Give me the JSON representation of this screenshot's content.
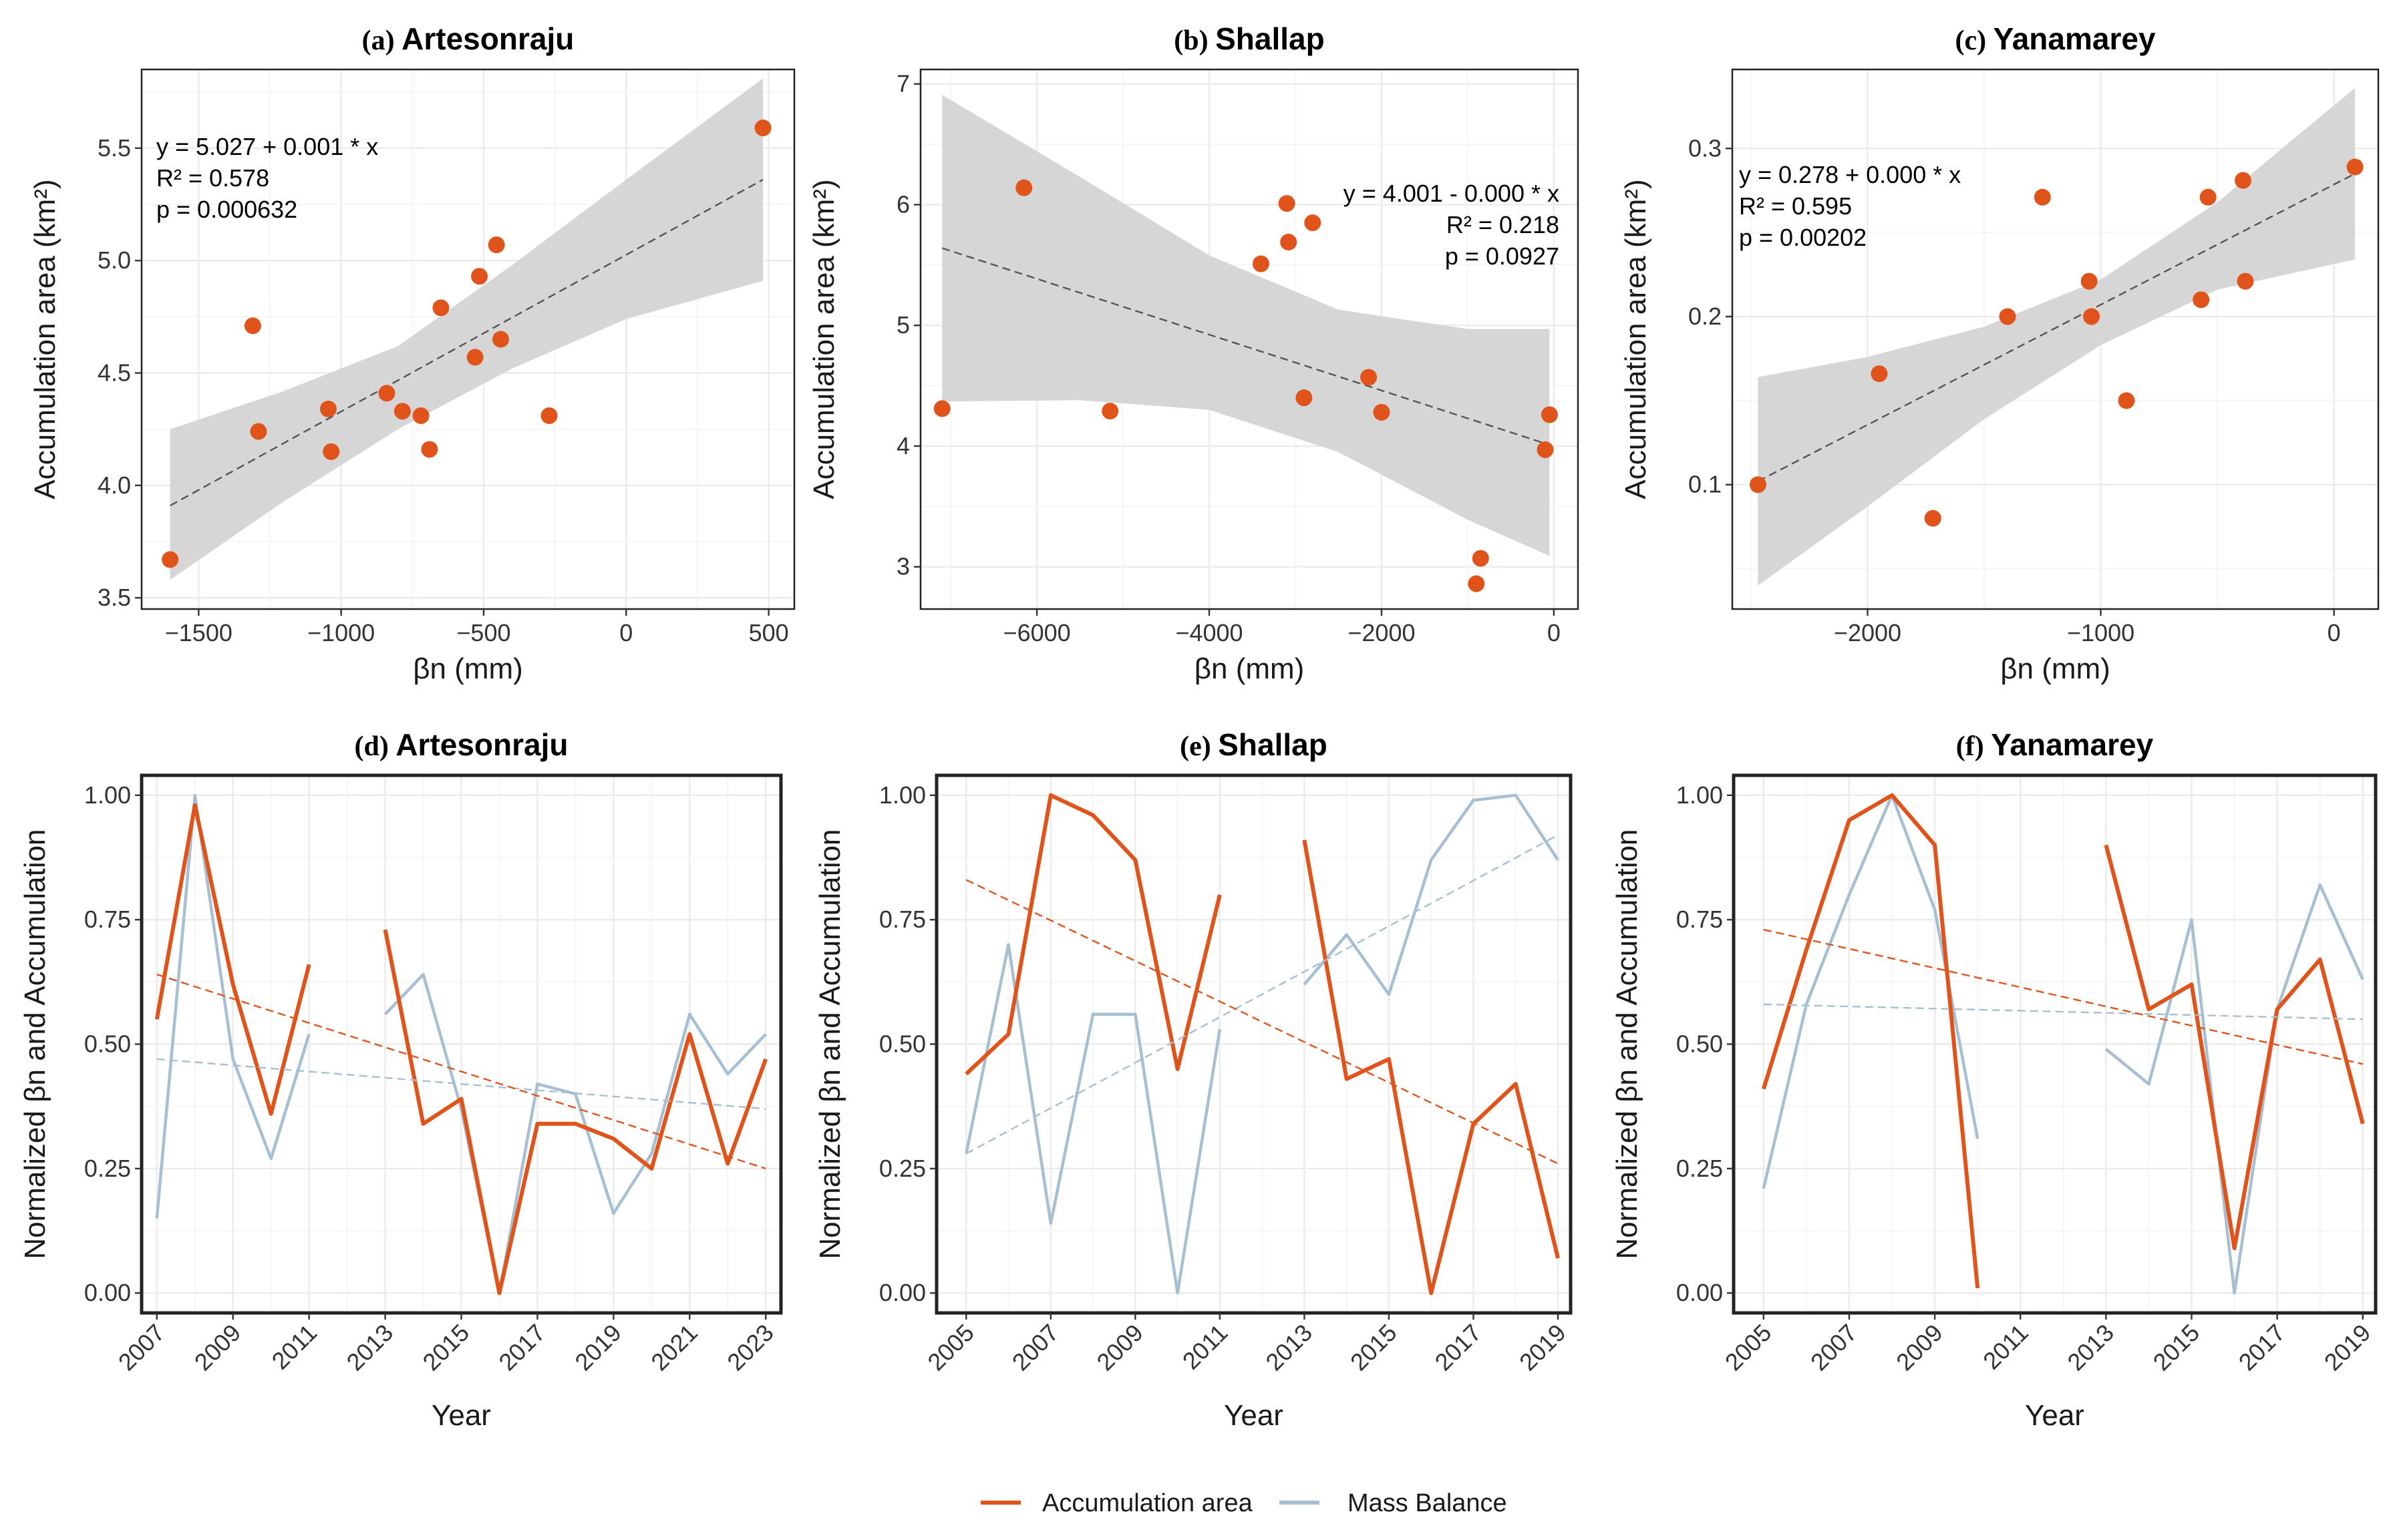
{
  "colors": {
    "accumulation": "#E0541B",
    "mass_balance": "#A7BFD3",
    "band": "#D6D6D6",
    "grid": "#EBEBEB"
  },
  "legend": {
    "accumulation_label": "Accumulation area",
    "mass_balance_label": "Mass Balance"
  },
  "chart_data": [
    {
      "type": "scatter",
      "title_prefix": "(a)",
      "title_name": "Artesonraju",
      "xlabel": "βn (mm)",
      "ylabel": "Accumulation area (km²)",
      "xlim": [
        -1700,
        590
      ],
      "ylim": [
        3.45,
        5.85
      ],
      "xticks": [
        -1500,
        -1000,
        -500,
        0,
        500
      ],
      "xtick_labels": [
        "−1500",
        "−1000",
        "−500",
        "0",
        "500"
      ],
      "yticks": [
        3.5,
        4.0,
        4.5,
        5.0,
        5.5
      ],
      "ytick_labels": [
        "3.5",
        "4.0",
        "4.5",
        "5.0",
        "5.5"
      ],
      "points": [
        [
          -1600,
          3.67
        ],
        [
          -1310,
          4.71
        ],
        [
          -1290,
          4.24
        ],
        [
          -1045,
          4.34
        ],
        [
          -1035,
          4.15
        ],
        [
          -840,
          4.41
        ],
        [
          -785,
          4.33
        ],
        [
          -720,
          4.31
        ],
        [
          -690,
          4.16
        ],
        [
          -650,
          4.79
        ],
        [
          -530,
          4.57
        ],
        [
          -515,
          4.93
        ],
        [
          -455,
          5.07
        ],
        [
          -440,
          4.65
        ],
        [
          -270,
          4.31
        ],
        [
          480,
          5.59
        ]
      ],
      "fit": {
        "x0": -1600,
        "x1": 480,
        "y0": 3.91,
        "y1": 5.36
      },
      "band": [
        [
          -1600,
          3.58,
          4.25
        ],
        [
          -1200,
          3.93,
          4.42
        ],
        [
          -800,
          4.25,
          4.62
        ],
        [
          -400,
          4.52,
          4.98
        ],
        [
          0,
          4.74,
          5.36
        ],
        [
          480,
          4.91,
          5.81
        ]
      ],
      "annotation": [
        "y = 5.027 + 0.001 * x",
        "R² = 0.578",
        "p = 0.000632"
      ],
      "annotation_align": "left"
    },
    {
      "type": "scatter",
      "title_prefix": "(b)",
      "title_name": "Shallap",
      "xlabel": "βn (mm)",
      "ylabel": "Accumulation area (km²)",
      "xlim": [
        -7350,
        280
      ],
      "ylim": [
        2.65,
        7.12
      ],
      "xticks": [
        -6000,
        -4000,
        -2000,
        0
      ],
      "xtick_labels": [
        "−6000",
        "−4000",
        "−2000",
        "0"
      ],
      "yticks": [
        3,
        4,
        5,
        6,
        7
      ],
      "ytick_labels": [
        "3",
        "4",
        "5",
        "6",
        "7"
      ],
      "points": [
        [
          -7100,
          4.31
        ],
        [
          -6150,
          6.14
        ],
        [
          -5150,
          4.29
        ],
        [
          -3400,
          5.51
        ],
        [
          -3100,
          6.01
        ],
        [
          -3080,
          5.69
        ],
        [
          -2800,
          5.85
        ],
        [
          -2900,
          4.4
        ],
        [
          -2150,
          4.57
        ],
        [
          -2000,
          4.28
        ],
        [
          -900,
          2.86
        ],
        [
          -850,
          3.07
        ],
        [
          -100,
          3.97
        ],
        [
          -50,
          4.26
        ]
      ],
      "fit": {
        "x0": -7100,
        "x1": -50,
        "y0": 5.64,
        "y1": 4.01
      },
      "band": [
        [
          -7100,
          4.37,
          6.91
        ],
        [
          -5500,
          4.38,
          6.23
        ],
        [
          -4000,
          4.3,
          5.58
        ],
        [
          -2500,
          3.95,
          5.13
        ],
        [
          -1000,
          3.39,
          4.97
        ],
        [
          -50,
          3.09,
          4.97
        ]
      ],
      "annotation": [
        "y = 4.001 - 0.000 * x",
        "R² = 0.218",
        "p = 0.0927"
      ],
      "annotation_align": "right"
    },
    {
      "type": "scatter",
      "title_prefix": "(c)",
      "title_name": "Yanamarey",
      "xlabel": "βn (mm)",
      "ylabel": "Accumulation area (km²)",
      "xlim": [
        -2580,
        190
      ],
      "ylim": [
        0.026,
        0.347
      ],
      "xticks": [
        -2000,
        -1000,
        0
      ],
      "xtick_labels": [
        "−2000",
        "−1000",
        "0"
      ],
      "yticks": [
        0.1,
        0.2,
        0.3
      ],
      "ytick_labels": [
        "0.1",
        "0.2",
        "0.3"
      ],
      "points": [
        [
          -2470,
          0.1
        ],
        [
          -1950,
          0.166
        ],
        [
          -1720,
          0.08
        ],
        [
          -1400,
          0.2
        ],
        [
          -1250,
          0.271
        ],
        [
          -1050,
          0.221
        ],
        [
          -1040,
          0.2
        ],
        [
          -890,
          0.15
        ],
        [
          -570,
          0.21
        ],
        [
          -540,
          0.271
        ],
        [
          -390,
          0.281
        ],
        [
          -380,
          0.221
        ],
        [
          90,
          0.289
        ]
      ],
      "fit": {
        "x0": -2470,
        "x1": 90,
        "y0": 0.102,
        "y1": 0.285
      },
      "band": [
        [
          -2470,
          0.04,
          0.164
        ],
        [
          -2000,
          0.087,
          0.176
        ],
        [
          -1500,
          0.139,
          0.194
        ],
        [
          -1000,
          0.183,
          0.222
        ],
        [
          -500,
          0.216,
          0.268
        ],
        [
          90,
          0.234,
          0.336
        ]
      ],
      "annotation": [
        "y = 0.278 + 0.000 * x",
        "R² = 0.595",
        "p = 0.00202"
      ],
      "annotation_align": "left"
    },
    {
      "type": "line",
      "title_prefix": "(d)",
      "title_name": "Artesonraju",
      "xlabel": "Year",
      "ylabel": "Normalized βn and Accumulation",
      "xlim": [
        2006.6,
        2023.4
      ],
      "ylim": [
        -0.04,
        1.04
      ],
      "xticks": [
        2007,
        2009,
        2011,
        2013,
        2015,
        2017,
        2019,
        2021,
        2023
      ],
      "xtick_labels": [
        "2007",
        "2009",
        "2011",
        "2013",
        "2015",
        "2017",
        "2019",
        "2021",
        "2023"
      ],
      "yticks": [
        0,
        0.25,
        0.5,
        0.75,
        1.0
      ],
      "ytick_labels": [
        "0.00",
        "0.25",
        "0.50",
        "0.75",
        "1.00"
      ],
      "accumulation": [
        [
          [
            2007,
            0.55
          ],
          [
            2008,
            0.98
          ],
          [
            2009,
            0.62
          ],
          [
            2010,
            0.36
          ],
          [
            2011,
            0.66
          ]
        ],
        [
          [
            2013,
            0.73
          ],
          [
            2014,
            0.34
          ],
          [
            2015,
            0.39
          ],
          [
            2016,
            0.0
          ],
          [
            2017,
            0.34
          ],
          [
            2018,
            0.34
          ],
          [
            2019,
            0.31
          ],
          [
            2020,
            0.25
          ],
          [
            2021,
            0.52
          ],
          [
            2022,
            0.26
          ],
          [
            2023,
            0.47
          ]
        ]
      ],
      "mass_balance": [
        [
          [
            2007,
            0.15
          ],
          [
            2008,
            1.0
          ],
          [
            2009,
            0.47
          ],
          [
            2010,
            0.27
          ],
          [
            2011,
            0.52
          ]
        ],
        [
          [
            2013,
            0.56
          ],
          [
            2014,
            0.64
          ],
          [
            2015,
            0.37
          ],
          [
            2016,
            0.0
          ],
          [
            2017,
            0.42
          ],
          [
            2018,
            0.4
          ],
          [
            2019,
            0.16
          ],
          [
            2020,
            0.28
          ],
          [
            2021,
            0.56
          ],
          [
            2022,
            0.44
          ],
          [
            2023,
            0.52
          ]
        ]
      ],
      "accumulation_trend": [
        [
          2007,
          0.64
        ],
        [
          2023,
          0.25
        ]
      ],
      "mass_balance_trend": [
        [
          2007,
          0.47
        ],
        [
          2023,
          0.37
        ]
      ]
    },
    {
      "type": "line",
      "title_prefix": "(e)",
      "title_name": "Shallap",
      "xlabel": "Year",
      "ylabel": "Normalized βn and Accumulation",
      "xlim": [
        2004.3,
        2019.3
      ],
      "ylim": [
        -0.04,
        1.04
      ],
      "xticks": [
        2005,
        2007,
        2009,
        2011,
        2013,
        2015,
        2017,
        2019
      ],
      "xtick_labels": [
        "2005",
        "2007",
        "2009",
        "2011",
        "2013",
        "2015",
        "2017",
        "2019"
      ],
      "yticks": [
        0,
        0.25,
        0.5,
        0.75,
        1.0
      ],
      "ytick_labels": [
        "0.00",
        "0.25",
        "0.50",
        "0.75",
        "1.00"
      ],
      "accumulation": [
        [
          [
            2005,
            0.44
          ],
          [
            2006,
            0.52
          ],
          [
            2007,
            1.0
          ],
          [
            2008,
            0.96
          ],
          [
            2009,
            0.87
          ],
          [
            2010,
            0.45
          ],
          [
            2011,
            0.8
          ]
        ],
        [
          [
            2013,
            0.91
          ],
          [
            2014,
            0.43
          ],
          [
            2015,
            0.47
          ],
          [
            2016,
            0.0
          ],
          [
            2017,
            0.34
          ],
          [
            2018,
            0.42
          ],
          [
            2019,
            0.07
          ]
        ]
      ],
      "mass_balance": [
        [
          [
            2005,
            0.28
          ],
          [
            2006,
            0.7
          ],
          [
            2007,
            0.14
          ],
          [
            2008,
            0.56
          ],
          [
            2009,
            0.56
          ],
          [
            2010,
            0.0
          ],
          [
            2011,
            0.53
          ]
        ],
        [
          [
            2013,
            0.62
          ],
          [
            2014,
            0.72
          ],
          [
            2015,
            0.6
          ],
          [
            2016,
            0.87
          ],
          [
            2017,
            0.99
          ],
          [
            2018,
            1.0
          ],
          [
            2019,
            0.87
          ]
        ]
      ],
      "accumulation_trend": [
        [
          2005,
          0.83
        ],
        [
          2019,
          0.26
        ]
      ],
      "mass_balance_trend": [
        [
          2005,
          0.28
        ],
        [
          2019,
          0.92
        ]
      ]
    },
    {
      "type": "line",
      "title_prefix": "(f)",
      "title_name": "Yanamarey",
      "xlabel": "Year",
      "ylabel": "Normalized βn and Accumulation",
      "xlim": [
        2004.3,
        2019.3
      ],
      "ylim": [
        -0.04,
        1.04
      ],
      "xticks": [
        2005,
        2007,
        2009,
        2011,
        2013,
        2015,
        2017,
        2019
      ],
      "xtick_labels": [
        "2005",
        "2007",
        "2009",
        "2011",
        "2013",
        "2015",
        "2017",
        "2019"
      ],
      "yticks": [
        0,
        0.25,
        0.5,
        0.75,
        1.0
      ],
      "ytick_labels": [
        "0.00",
        "0.25",
        "0.50",
        "0.75",
        "1.00"
      ],
      "accumulation": [
        [
          [
            2005,
            0.41
          ],
          [
            2006,
            0.69
          ],
          [
            2007,
            0.95
          ],
          [
            2008,
            1.0
          ],
          [
            2009,
            0.9
          ],
          [
            2010,
            0.01
          ]
        ],
        [
          [
            2013,
            0.9
          ],
          [
            2014,
            0.57
          ],
          [
            2015,
            0.62
          ],
          [
            2016,
            0.09
          ],
          [
            2017,
            0.57
          ],
          [
            2018,
            0.67
          ],
          [
            2019,
            0.34
          ]
        ]
      ],
      "mass_balance": [
        [
          [
            2005,
            0.21
          ],
          [
            2006,
            0.58
          ],
          [
            2007,
            0.8
          ],
          [
            2008,
            1.0
          ],
          [
            2009,
            0.77
          ],
          [
            2010,
            0.31
          ]
        ],
        [
          [
            2013,
            0.49
          ],
          [
            2014,
            0.42
          ],
          [
            2015,
            0.75
          ],
          [
            2016,
            0.0
          ],
          [
            2017,
            0.57
          ],
          [
            2018,
            0.82
          ],
          [
            2019,
            0.63
          ]
        ]
      ],
      "accumulation_trend": [
        [
          2005,
          0.73
        ],
        [
          2019,
          0.46
        ]
      ],
      "mass_balance_trend": [
        [
          2005,
          0.58
        ],
        [
          2019,
          0.55
        ]
      ]
    }
  ]
}
